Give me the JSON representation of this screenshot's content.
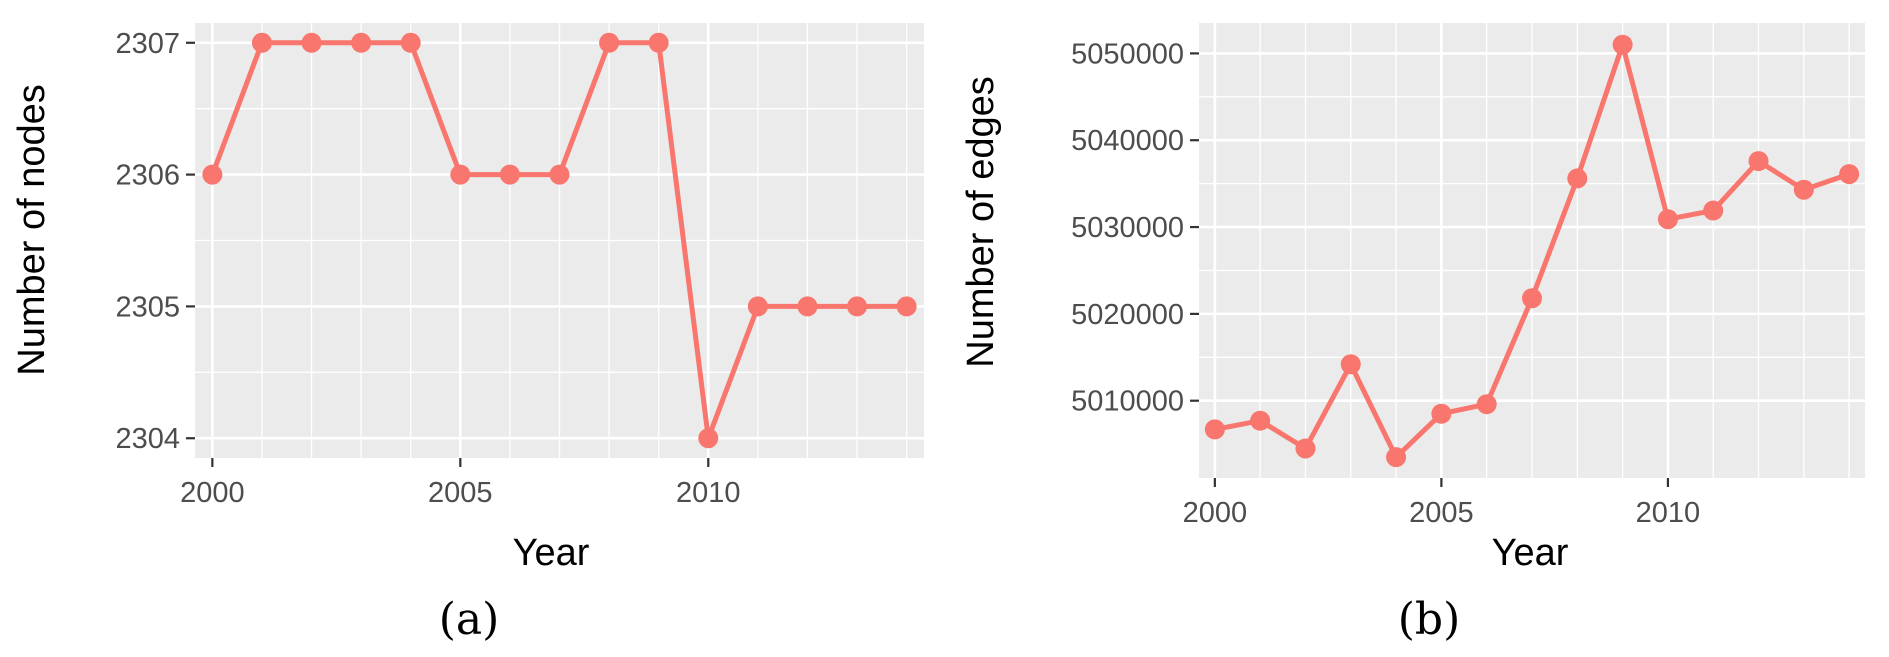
{
  "chart_data": [
    {
      "type": "line",
      "caption": "(a)",
      "xlabel": "Year",
      "ylabel": "Number of nodes",
      "x": [
        2000,
        2001,
        2002,
        2003,
        2004,
        2005,
        2006,
        2007,
        2008,
        2009,
        2010,
        2011,
        2012,
        2013,
        2014
      ],
      "values": [
        2306,
        2307,
        2307,
        2307,
        2307,
        2306,
        2306,
        2306,
        2307,
        2307,
        2304,
        2305,
        2305,
        2305,
        2305
      ],
      "xlim": [
        1999.65,
        2014.35
      ],
      "ylim": [
        2303.85,
        2307.15
      ],
      "xticks": [
        2000,
        2005,
        2010
      ],
      "yticks": [
        2304,
        2305,
        2306,
        2307
      ],
      "grid": true,
      "color": "#F8766D",
      "panel_bg": "#EBEBEB"
    },
    {
      "type": "line",
      "caption": "(b)",
      "xlabel": "Year",
      "ylabel": "Number of edges",
      "x": [
        2000,
        2001,
        2002,
        2003,
        2004,
        2005,
        2006,
        2007,
        2008,
        2009,
        2010,
        2011,
        2012,
        2013,
        2014
      ],
      "values": [
        5006700,
        5007700,
        5004500,
        5014200,
        5003500,
        5008500,
        5009600,
        5021800,
        5035600,
        5051000,
        5030900,
        5031900,
        5037600,
        5034300,
        5036100
      ],
      "xlim": [
        1999.65,
        2014.35
      ],
      "ylim": [
        5001100,
        5053500
      ],
      "xticks": [
        2000,
        2005,
        2010
      ],
      "yticks": [
        5010000,
        5020000,
        5030000,
        5040000,
        5050000
      ],
      "grid": true,
      "color": "#F8766D",
      "panel_bg": "#EBEBEB"
    }
  ]
}
